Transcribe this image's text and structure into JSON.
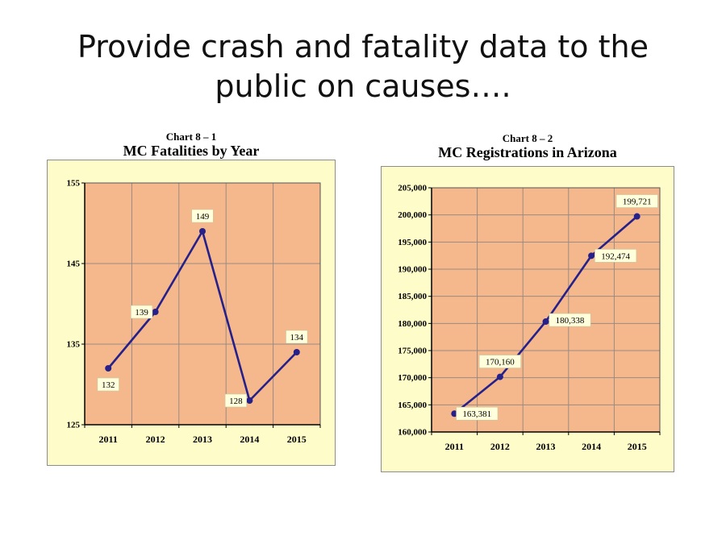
{
  "slide": {
    "title_line1": "Provide crash and fatality data to the",
    "title_line2": "public on causes…."
  },
  "colors": {
    "plot_bg": "#f5b88d",
    "frame_bg": "#fefcc8",
    "line": "#25208a",
    "grid": "#9a8a80",
    "label_bg": "#ffffdc"
  },
  "chart_data": [
    {
      "type": "line",
      "caption": "Chart 8 – 1",
      "title": "MC Fatalities by Year",
      "categories": [
        "2011",
        "2012",
        "2013",
        "2014",
        "2015"
      ],
      "values": [
        132,
        139,
        149,
        128,
        134
      ],
      "data_labels": [
        "132",
        "139",
        "149",
        "128",
        "134"
      ],
      "ylim": [
        125,
        155
      ],
      "y_ticks": [
        125,
        135,
        145,
        155
      ],
      "y_tick_labels": [
        "125",
        "135",
        "145",
        "155"
      ],
      "grid": true,
      "legend": "none"
    },
    {
      "type": "line",
      "caption": "Chart 8 – 2",
      "title": "MC Registrations in Arizona",
      "categories": [
        "2011",
        "2012",
        "2013",
        "2014",
        "2015"
      ],
      "values": [
        163381,
        170160,
        180338,
        192474,
        199721
      ],
      "data_labels": [
        "163,381",
        "170,160",
        "180,338",
        "192,474",
        "199,721"
      ],
      "ylim": [
        160000,
        205000
      ],
      "y_ticks": [
        160000,
        165000,
        170000,
        175000,
        180000,
        185000,
        190000,
        195000,
        200000,
        205000
      ],
      "y_tick_labels": [
        "160,000",
        "165,000",
        "170,000",
        "175,000",
        "180,000",
        "185,000",
        "190,000",
        "195,000",
        "200,000",
        "205,000"
      ],
      "grid": true,
      "legend": "none"
    }
  ]
}
